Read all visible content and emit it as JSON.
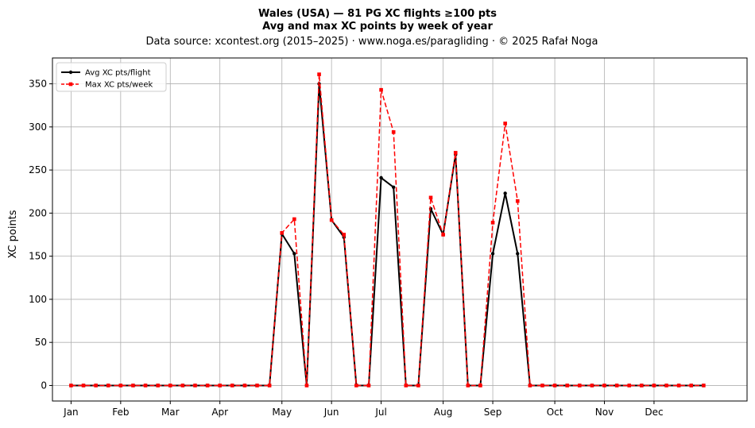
{
  "chart_data": {
    "type": "line",
    "title": "Wales (USA)  —  81 PG XC flights ≥100 pts",
    "subtitle": "Avg and max XC points by week of year",
    "source": "Data source: xcontest.org (2015–2025)  ·  www.noga.es/paragliding  ·  © 2025 Rafał Noga",
    "xlabel": "",
    "ylabel": "XC points",
    "xlim": [
      -1.5,
      54.5
    ],
    "ylim": [
      -18,
      380
    ],
    "yticks": [
      0,
      50,
      100,
      150,
      200,
      250,
      300,
      350
    ],
    "month_ticks": [
      {
        "label": "Jan",
        "week": 0
      },
      {
        "label": "Feb",
        "week": 4
      },
      {
        "label": "Mar",
        "week": 8
      },
      {
        "label": "Apr",
        "week": 12
      },
      {
        "label": "May",
        "week": 17
      },
      {
        "label": "Jun",
        "week": 21
      },
      {
        "label": "Jul",
        "week": 25
      },
      {
        "label": "Aug",
        "week": 30
      },
      {
        "label": "Sep",
        "week": 34
      },
      {
        "label": "Oct",
        "week": 39
      },
      {
        "label": "Nov",
        "week": 43
      },
      {
        "label": "Dec",
        "week": 47
      }
    ],
    "grid": true,
    "legend_position": "top-left",
    "x": [
      0,
      1,
      2,
      3,
      4,
      5,
      6,
      7,
      8,
      9,
      10,
      11,
      12,
      13,
      14,
      15,
      16,
      17,
      18,
      19,
      20,
      21,
      22,
      23,
      24,
      25,
      26,
      27,
      28,
      29,
      30,
      31,
      32,
      33,
      34,
      35,
      36,
      37,
      38,
      39,
      40,
      41,
      42,
      43,
      44,
      45,
      46,
      47,
      48,
      49,
      50,
      51
    ],
    "series": [
      {
        "name": "Avg XC pts/flight",
        "color": "#000000",
        "style": "solid",
        "marker": "circle",
        "values": [
          0,
          0,
          0,
          0,
          0,
          0,
          0,
          0,
          0,
          0,
          0,
          0,
          0,
          0,
          0,
          0,
          0,
          176,
          153,
          0,
          350,
          192,
          172,
          0,
          0,
          241,
          230,
          0,
          0,
          205,
          175,
          268,
          0,
          0,
          153,
          223,
          153,
          0,
          0,
          0,
          0,
          0,
          0,
          0,
          0,
          0,
          0,
          0,
          0,
          0,
          0,
          0
        ]
      },
      {
        "name": "Max XC pts/week",
        "color": "#ff0000",
        "style": "dashed",
        "marker": "square",
        "values": [
          0,
          0,
          0,
          0,
          0,
          0,
          0,
          0,
          0,
          0,
          0,
          0,
          0,
          0,
          0,
          0,
          0,
          177,
          193,
          0,
          361,
          192,
          175,
          0,
          0,
          343,
          294,
          0,
          0,
          218,
          175,
          270,
          0,
          0,
          189,
          304,
          214,
          0,
          0,
          0,
          0,
          0,
          0,
          0,
          0,
          0,
          0,
          0,
          0,
          0,
          0,
          0
        ]
      }
    ]
  }
}
